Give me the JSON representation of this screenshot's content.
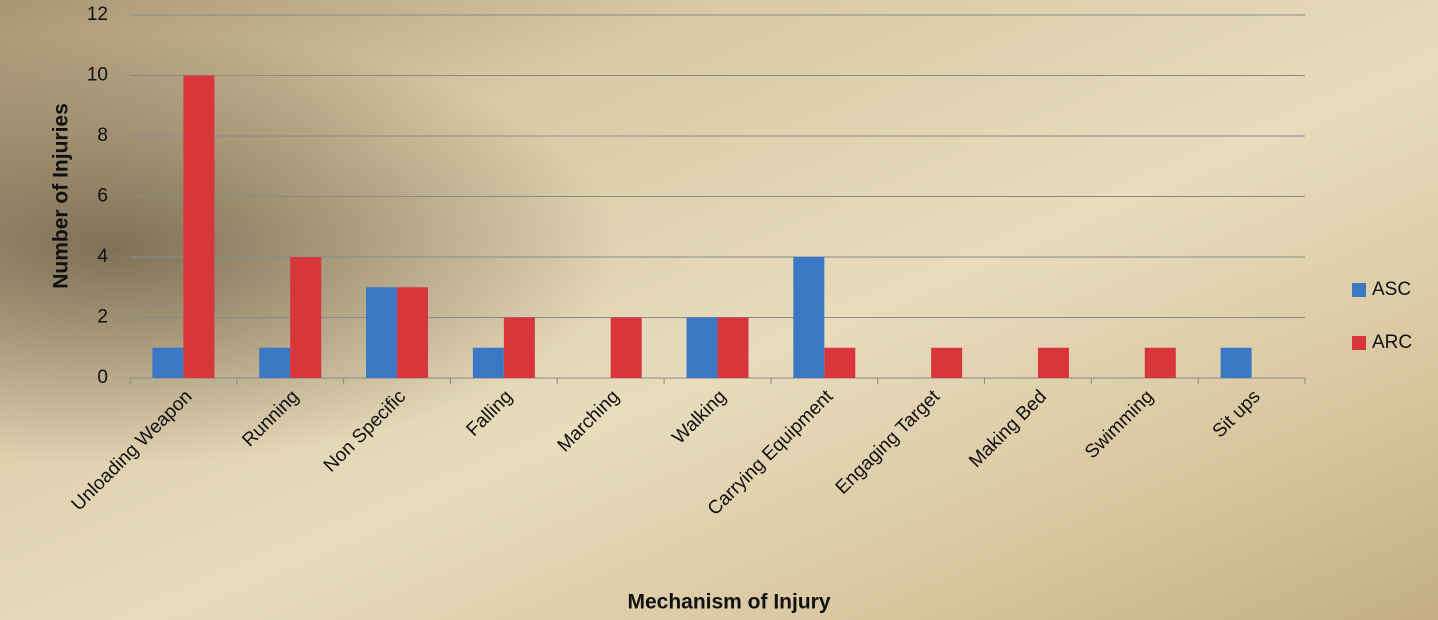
{
  "chart_data": {
    "type": "bar",
    "x_label": "Mechanism of Injury",
    "y_label": "Number of Injuries",
    "categories": [
      "Unloading Weapon",
      "Running",
      "Non Specific",
      "Falling",
      "Marching",
      "Walking",
      "Carrying Equipment",
      "Engaging Target",
      "Making Bed",
      "Swimming",
      "Sit ups"
    ],
    "series": [
      {
        "name": "ASC",
        "color": "#3b78c4",
        "values": [
          1,
          1,
          3,
          1,
          0,
          2,
          4,
          0,
          0,
          0,
          1
        ]
      },
      {
        "name": "ARC",
        "color": "#d8363b",
        "values": [
          10,
          4,
          3,
          2,
          2,
          2,
          1,
          1,
          1,
          1,
          0
        ]
      }
    ],
    "ylim": [
      0,
      12
    ],
    "yticks": [
      0,
      2,
      4,
      6,
      8,
      10,
      12
    ],
    "grid": true,
    "legend": "right"
  }
}
